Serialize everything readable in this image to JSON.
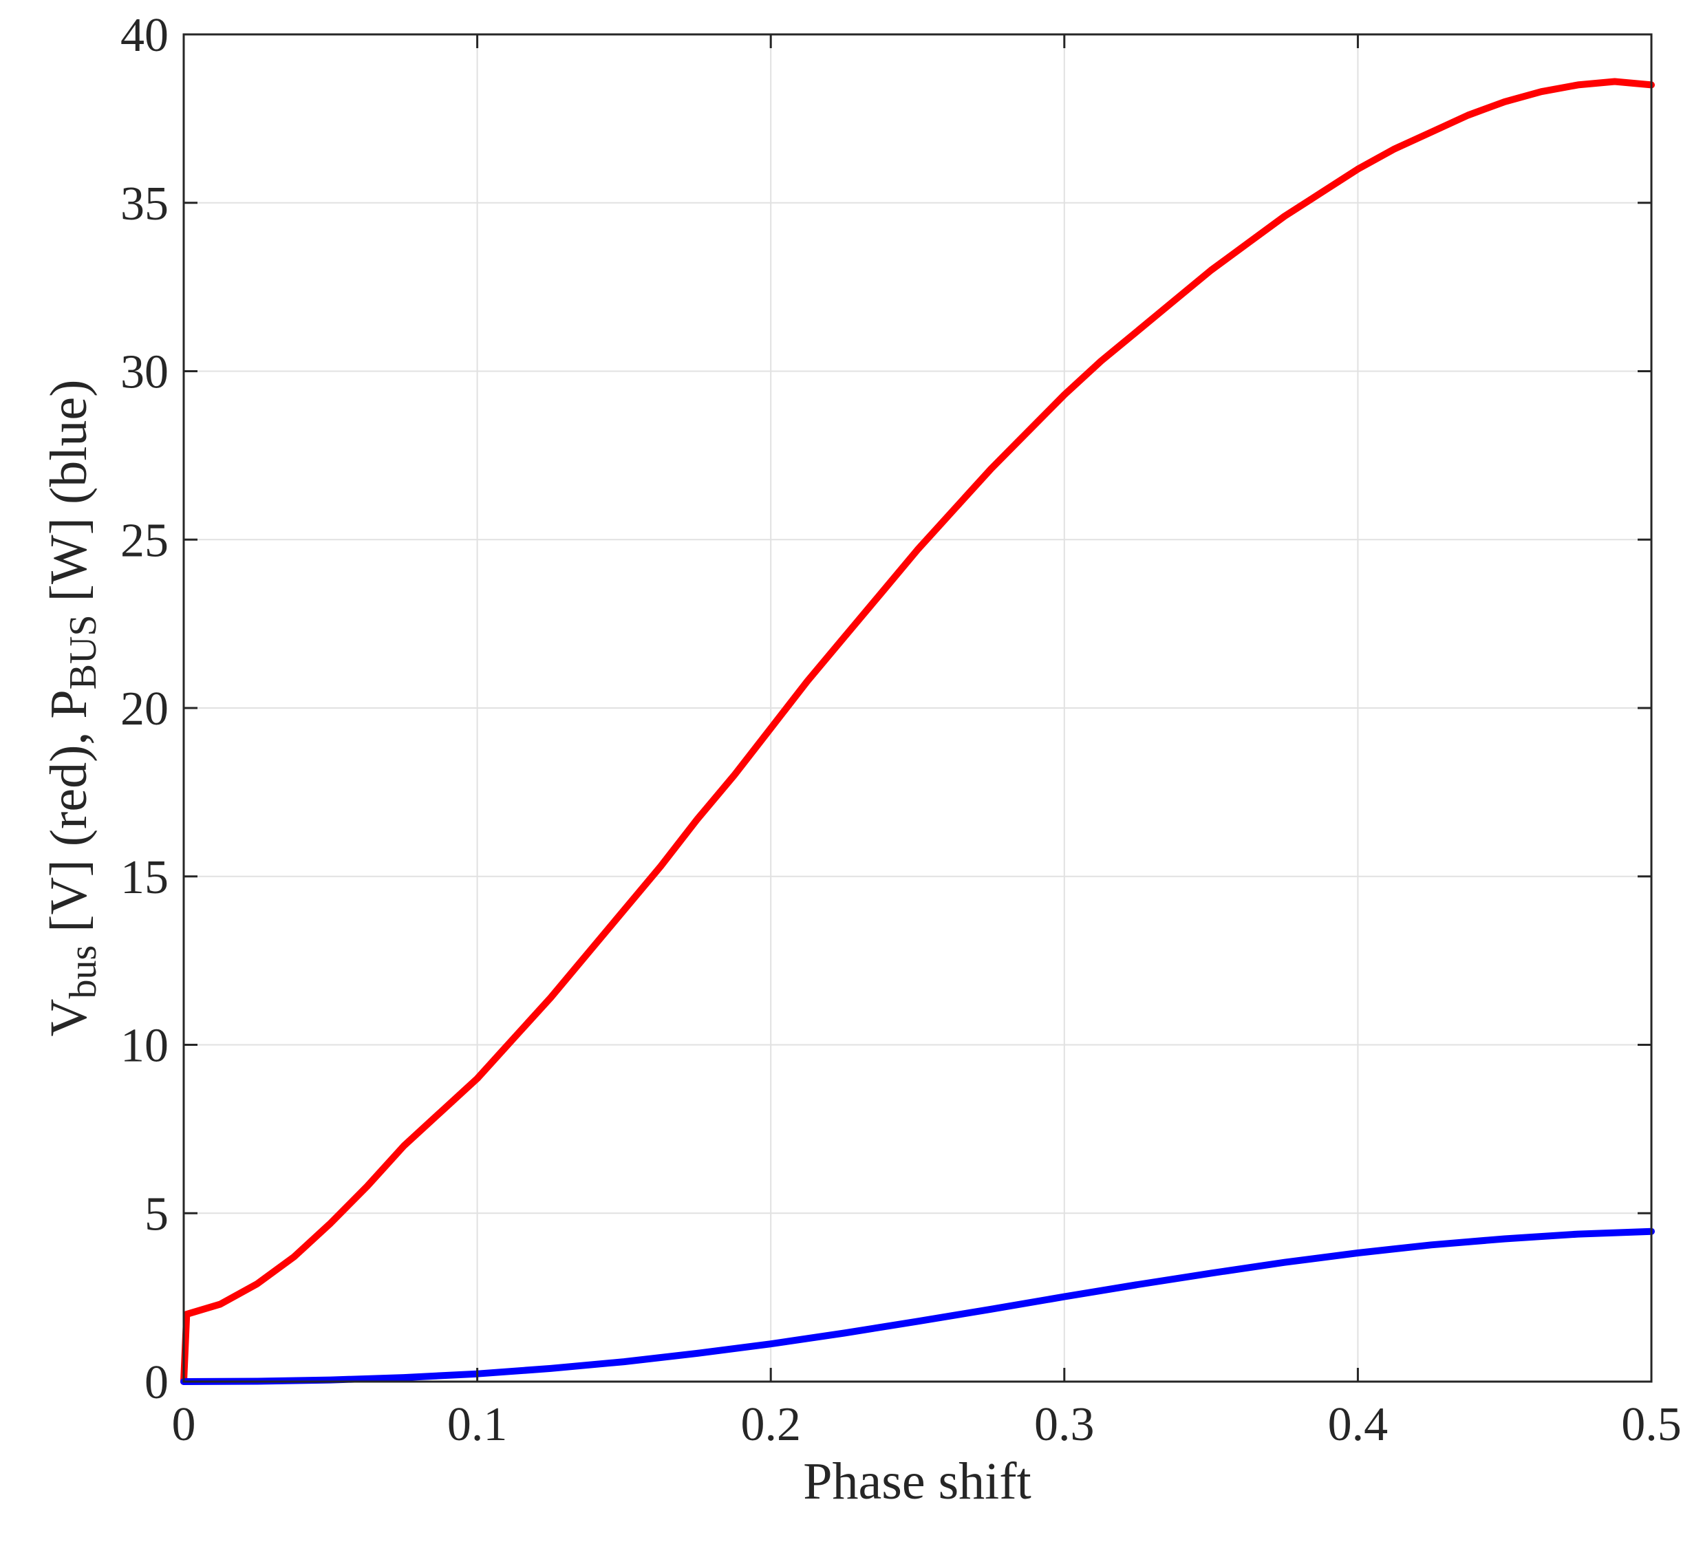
{
  "chart_data": {
    "type": "line",
    "xlabel": "Phase shift",
    "ylabel": {
      "part1": "V",
      "part1_sub": "bus",
      "part2": " [V] (red), P",
      "part2_sub": "BUS",
      "part3": " [W] (blue)"
    },
    "xlim": [
      0,
      0.5
    ],
    "ylim": [
      0,
      40
    ],
    "xticks": [
      0,
      0.1,
      0.2,
      0.3,
      0.4,
      0.5
    ],
    "xtick_labels": [
      "0",
      "0.1",
      "0.2",
      "0.3",
      "0.4",
      "0.5"
    ],
    "yticks": [
      0,
      5,
      10,
      15,
      20,
      25,
      30,
      35,
      40
    ],
    "ytick_labels": [
      "0",
      "5",
      "10",
      "15",
      "20",
      "25",
      "30",
      "35",
      "40"
    ],
    "grid": true,
    "series": [
      {
        "color": "#ff0000",
        "x": [
          0,
          0.001,
          0.0125,
          0.025,
          0.0375,
          0.05,
          0.0625,
          0.075,
          0.0875,
          0.1,
          0.1125,
          0.125,
          0.1375,
          0.15,
          0.1625,
          0.175,
          0.1875,
          0.2,
          0.2125,
          0.225,
          0.2375,
          0.25,
          0.2625,
          0.275,
          0.2875,
          0.3,
          0.3125,
          0.325,
          0.3375,
          0.35,
          0.3625,
          0.375,
          0.3875,
          0.4,
          0.4125,
          0.425,
          0.4375,
          0.45,
          0.4625,
          0.475,
          0.4875,
          0.5
        ],
        "y": [
          0,
          2.0,
          2.3,
          2.9,
          3.7,
          4.7,
          5.8,
          7.0,
          8.0,
          9.0,
          10.2,
          11.4,
          12.7,
          14.0,
          15.3,
          16.7,
          18.0,
          19.4,
          20.8,
          22.1,
          23.4,
          24.7,
          25.9,
          27.1,
          28.2,
          29.3,
          30.3,
          31.2,
          32.1,
          33.0,
          33.8,
          34.6,
          35.3,
          36.0,
          36.6,
          37.1,
          37.6,
          38.0,
          38.3,
          38.5,
          38.6,
          38.5
        ]
      },
      {
        "color": "#0000ff",
        "x": [
          0,
          0.025,
          0.05,
          0.075,
          0.1,
          0.125,
          0.15,
          0.175,
          0.2,
          0.225,
          0.25,
          0.275,
          0.3,
          0.325,
          0.35,
          0.375,
          0.4,
          0.425,
          0.45,
          0.475,
          0.5
        ],
        "y": [
          0,
          0.01,
          0.05,
          0.12,
          0.23,
          0.39,
          0.59,
          0.84,
          1.12,
          1.44,
          1.79,
          2.15,
          2.52,
          2.88,
          3.22,
          3.54,
          3.82,
          4.06,
          4.24,
          4.38,
          4.46
        ]
      }
    ]
  }
}
